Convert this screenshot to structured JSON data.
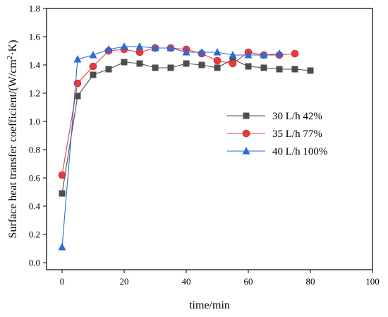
{
  "chart_data": {
    "type": "line",
    "xlabel": "time/min",
    "ylabel_parts": [
      "Surface heat transfer coefficient/(W/cm",
      "2",
      "·K)"
    ],
    "xlim": [
      -5,
      100
    ],
    "ylim": [
      -0.05,
      1.8
    ],
    "x_ticks": [
      0,
      20,
      40,
      60,
      80,
      100
    ],
    "y_ticks": [
      0.0,
      0.2,
      0.4,
      0.6,
      0.8,
      1.0,
      1.2,
      1.4,
      1.6,
      1.8
    ],
    "legend_position": "right",
    "series": [
      {
        "name": "30 L/h 42%",
        "color": "#4d4d4d",
        "marker": "square",
        "x": [
          0,
          5,
          10,
          15,
          20,
          25,
          30,
          35,
          40,
          45,
          50,
          55,
          60,
          65,
          70,
          75,
          80
        ],
        "y": [
          0.49,
          1.18,
          1.33,
          1.37,
          1.42,
          1.41,
          1.38,
          1.38,
          1.41,
          1.4,
          1.38,
          1.44,
          1.39,
          1.38,
          1.37,
          1.37,
          1.36
        ]
      },
      {
        "name": "35 L/h 77%",
        "color": "#e8393d",
        "marker": "circle",
        "x": [
          0,
          5,
          10,
          15,
          20,
          25,
          30,
          35,
          40,
          45,
          50,
          55,
          60,
          65,
          70,
          75
        ],
        "y": [
          0.62,
          1.27,
          1.39,
          1.5,
          1.51,
          1.49,
          1.52,
          1.52,
          1.51,
          1.48,
          1.43,
          1.41,
          1.49,
          1.47,
          1.47,
          1.48
        ]
      },
      {
        "name": "40 L/h 100%",
        "color": "#2a6bd6",
        "marker": "triangle",
        "x": [
          0,
          5,
          10,
          15,
          20,
          25,
          30,
          35,
          40,
          45,
          50,
          55,
          60,
          65,
          70
        ],
        "y": [
          0.11,
          1.44,
          1.47,
          1.51,
          1.53,
          1.53,
          1.52,
          1.52,
          1.49,
          1.49,
          1.49,
          1.47,
          1.47,
          1.47,
          1.48
        ]
      }
    ]
  }
}
